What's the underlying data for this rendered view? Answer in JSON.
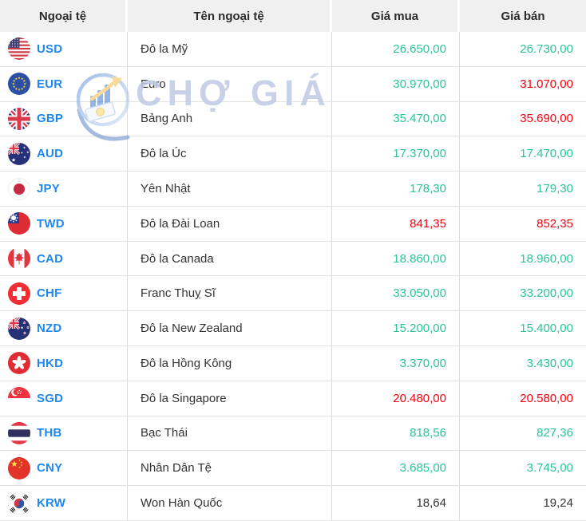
{
  "table": {
    "columns": [
      "Ngoại tệ",
      "Tên ngoại tệ",
      "Giá mua",
      "Giá bán"
    ],
    "rows": [
      {
        "code": "USD",
        "flag": "us",
        "name": "Đô la Mỹ",
        "buy": "26.650,00",
        "buy_dir": "up",
        "sell": "26.730,00",
        "sell_dir": "up"
      },
      {
        "code": "EUR",
        "flag": "eu",
        "name": "Euro",
        "buy": "30.970,00",
        "buy_dir": "up",
        "sell": "31.070,00",
        "sell_dir": "down"
      },
      {
        "code": "GBP",
        "flag": "gb",
        "name": "Bảng Anh",
        "buy": "35.470,00",
        "buy_dir": "up",
        "sell": "35.690,00",
        "sell_dir": "down"
      },
      {
        "code": "AUD",
        "flag": "au",
        "name": "Đô la Úc",
        "buy": "17.370,00",
        "buy_dir": "up",
        "sell": "17.470,00",
        "sell_dir": "up"
      },
      {
        "code": "JPY",
        "flag": "jp",
        "name": "Yên Nhật",
        "buy": "178,30",
        "buy_dir": "up",
        "sell": "179,30",
        "sell_dir": "up"
      },
      {
        "code": "TWD",
        "flag": "tw",
        "name": "Đô la Đài Loan",
        "buy": "841,35",
        "buy_dir": "down",
        "sell": "852,35",
        "sell_dir": "down"
      },
      {
        "code": "CAD",
        "flag": "ca",
        "name": "Đô la Canada",
        "buy": "18.860,00",
        "buy_dir": "up",
        "sell": "18.960,00",
        "sell_dir": "up"
      },
      {
        "code": "CHF",
        "flag": "ch",
        "name": "Franc Thuỵ Sĩ",
        "buy": "33.050,00",
        "buy_dir": "up",
        "sell": "33.200,00",
        "sell_dir": "up"
      },
      {
        "code": "NZD",
        "flag": "nz",
        "name": "Đô la New Zealand",
        "buy": "15.200,00",
        "buy_dir": "up",
        "sell": "15.400,00",
        "sell_dir": "up"
      },
      {
        "code": "HKD",
        "flag": "hk",
        "name": "Đô la Hồng Kông",
        "buy": "3.370,00",
        "buy_dir": "up",
        "sell": "3.430,00",
        "sell_dir": "up"
      },
      {
        "code": "SGD",
        "flag": "sg",
        "name": "Đô la Singapore",
        "buy": "20.480,00",
        "buy_dir": "down",
        "sell": "20.580,00",
        "sell_dir": "down"
      },
      {
        "code": "THB",
        "flag": "th",
        "name": "Bạc Thái",
        "buy": "818,56",
        "buy_dir": "up",
        "sell": "827,36",
        "sell_dir": "up"
      },
      {
        "code": "CNY",
        "flag": "cn",
        "name": "Nhân Dân Tệ",
        "buy": "3.685,00",
        "buy_dir": "up",
        "sell": "3.745,00",
        "sell_dir": "up"
      },
      {
        "code": "KRW",
        "flag": "kr",
        "name": "Won Hàn Quốc",
        "buy": "18,64",
        "buy_dir": "neutral",
        "sell": "19,24",
        "sell_dir": "neutral"
      }
    ]
  },
  "watermark": {
    "text": "CHỢ GIÁ",
    "logo_icon": "cho-gia-logo-icon"
  },
  "colors": {
    "up": "#2ac498",
    "down": "#f7000f",
    "neutral": "#333333",
    "code": "#1e87f0",
    "header_bg": "#f0f0f1"
  }
}
